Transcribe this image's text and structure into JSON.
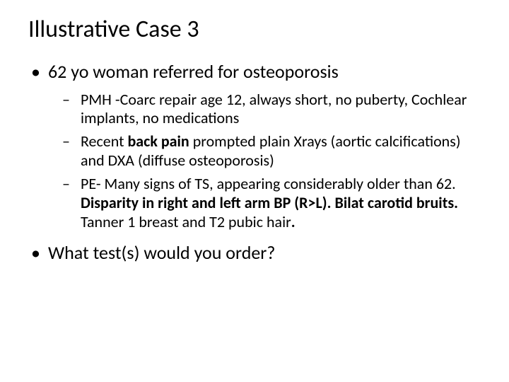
{
  "title": "Illustrative Case 3",
  "bullets": {
    "b1": "62 yo woman referred for osteoporosis",
    "sub": {
      "s1_a": "PMH -Coarc repair age 12, always short, no puberty, Cochlear implants, no medications",
      "s2_pre": "Recent ",
      "s2_bold": "back pain",
      "s2_post": " prompted plain Xrays (aortic calcifications) and DXA (diffuse osteoporosis)",
      "s3_pre": "PE- Many signs  of TS, appearing considerably older than 62. ",
      "s3_bold1": "Disparity in right and left arm BP (R>L). Bilat carotid bruits.",
      "s3_post1": " Tanner 1 breast and T2 pubic hair",
      "s3_bold2": "."
    },
    "b2": "What test(s) would you order?"
  },
  "style": {
    "background_color": "#ffffff",
    "text_color": "#000000",
    "title_fontsize": 34,
    "lvl1_fontsize": 26,
    "lvl2_fontsize": 22,
    "font_family": "Calibri"
  }
}
